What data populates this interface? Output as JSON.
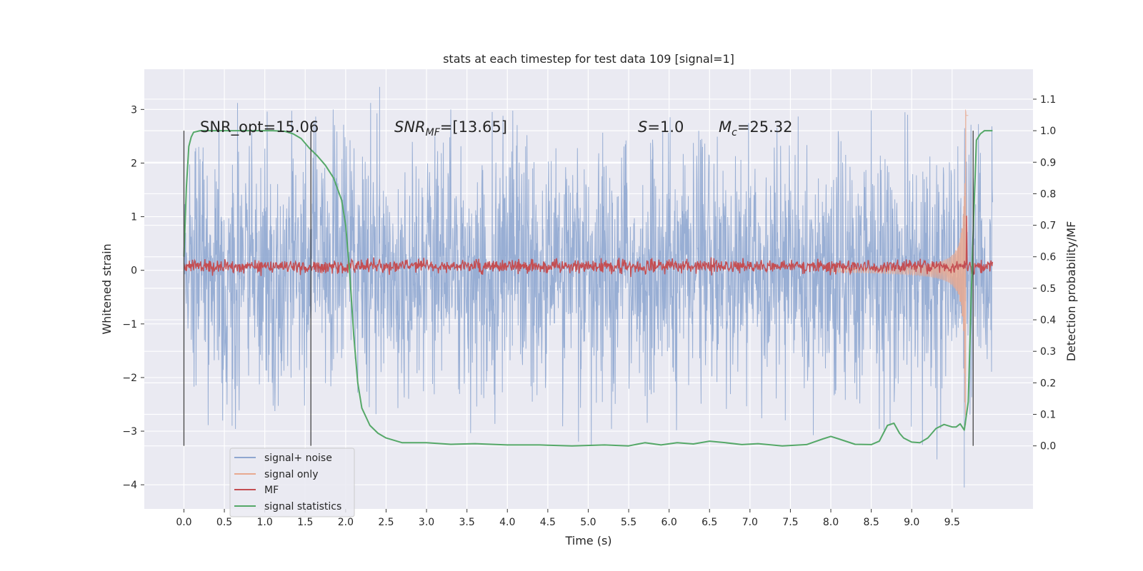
{
  "chart_data": {
    "type": "line",
    "title": "stats at each timestep for test data 109 [signal=1]",
    "xlabel": "Time (s)",
    "ylabel": "Whitened strain",
    "y2label": "Detection probability/MF",
    "xlim": [
      -0.49,
      10.5
    ],
    "ylim": [
      -4.45,
      3.75
    ],
    "y2lim": [
      -0.2,
      1.195
    ],
    "x_ticks": [
      0.0,
      0.5,
      1.0,
      1.5,
      2.0,
      2.5,
      3.0,
      3.5,
      4.0,
      4.5,
      5.0,
      5.5,
      6.0,
      6.5,
      7.0,
      7.5,
      8.0,
      8.5,
      9.0,
      9.5
    ],
    "x_tick_labels": [
      "0.0",
      "0.5",
      "1.0",
      "1.5",
      "2.0",
      "2.5",
      "3.0",
      "3.5",
      "4.0",
      "4.5",
      "5.0",
      "5.5",
      "6.0",
      "6.5",
      "7.0",
      "7.5",
      "8.0",
      "8.5",
      "9.0",
      "9.5"
    ],
    "y_ticks": [
      3,
      2,
      1,
      0,
      -1,
      -2,
      -3,
      -4
    ],
    "y_tick_labels": [
      "3",
      "2",
      "1",
      "0",
      "−1",
      "−2",
      "−3",
      "−4"
    ],
    "y2_ticks": [
      1.1,
      1.0,
      0.9,
      0.8,
      0.7,
      0.6,
      0.5,
      0.4,
      0.3,
      0.2,
      0.1,
      0.0
    ],
    "y2_tick_labels": [
      "1.1",
      "1.0",
      "0.9",
      "0.8",
      "0.7",
      "0.6",
      "0.5",
      "0.4",
      "0.3",
      "0.2",
      "0.1",
      "0.0"
    ],
    "grid": true,
    "legend_position": "lower-left",
    "annotations": {
      "snr_opt": "SNR_opt=15.06",
      "snr_mf_label": "SNR",
      "snr_mf_sub": "MF",
      "snr_mf_value": "=[13.65]",
      "s_label": "S",
      "s_value": "=1.0",
      "mc_label": "M",
      "mc_sub": "c",
      "mc_value": "=25.32"
    },
    "vertical_markers": [
      0.0,
      1.57,
      9.76
    ],
    "series": [
      {
        "name": "signal+ noise",
        "color": "#8fa7d0",
        "axis": "left",
        "x_range": [
          0.0,
          10.0
        ],
        "envelope_typical": 1.4,
        "peak_min": -4.05,
        "peak_max": 3.42
      },
      {
        "name": "signal only",
        "color": "#e8a990",
        "axis": "left",
        "x_range": [
          8.0,
          9.7
        ],
        "chirp_peak_x": 9.67,
        "chirp_peak_amp": 3.0
      },
      {
        "name": "MF",
        "color": "#c44e52",
        "axis": "right",
        "x_range": [
          0.0,
          10.0
        ],
        "mean_level": 0.57,
        "noise_band": 0.025,
        "spike": {
          "x": 9.68,
          "y": 0.73
        }
      },
      {
        "name": "signal statistics",
        "color": "#55a868",
        "axis": "right",
        "x": [
          0.0,
          0.03,
          0.06,
          0.09,
          0.12,
          0.2,
          0.4,
          0.8,
          1.1,
          1.25,
          1.35,
          1.45,
          1.55,
          1.65,
          1.75,
          1.85,
          1.95,
          2.0,
          2.05,
          2.1,
          2.15,
          2.2,
          2.3,
          2.4,
          2.5,
          2.7,
          3.0,
          3.3,
          3.6,
          4.0,
          4.4,
          4.8,
          5.2,
          5.5,
          5.7,
          5.9,
          6.1,
          6.3,
          6.5,
          6.7,
          6.9,
          7.1,
          7.4,
          7.7,
          7.9,
          8.0,
          8.1,
          8.3,
          8.5,
          8.6,
          8.65,
          8.7,
          8.78,
          8.85,
          8.9,
          9.0,
          9.1,
          9.2,
          9.3,
          9.4,
          9.5,
          9.55,
          9.6,
          9.65,
          9.7,
          9.75,
          9.8,
          9.85,
          9.9,
          9.95,
          10.0
        ],
        "y": [
          0.6,
          0.82,
          0.95,
          0.98,
          0.995,
          1.0,
          1.0,
          1.0,
          1.0,
          0.998,
          0.99,
          0.975,
          0.945,
          0.92,
          0.89,
          0.85,
          0.78,
          0.7,
          0.55,
          0.35,
          0.2,
          0.12,
          0.065,
          0.04,
          0.025,
          0.01,
          0.01,
          0.005,
          0.007,
          0.003,
          0.003,
          0.0,
          0.003,
          0.0,
          0.01,
          0.003,
          0.01,
          0.006,
          0.015,
          0.01,
          0.004,
          0.007,
          0.0,
          0.004,
          0.022,
          0.03,
          0.022,
          0.005,
          0.004,
          0.015,
          0.04,
          0.065,
          0.072,
          0.04,
          0.025,
          0.012,
          0.01,
          0.025,
          0.055,
          0.068,
          0.06,
          0.06,
          0.07,
          0.05,
          0.14,
          0.6,
          0.97,
          0.99,
          1.0,
          1.0,
          1.0
        ]
      }
    ]
  }
}
